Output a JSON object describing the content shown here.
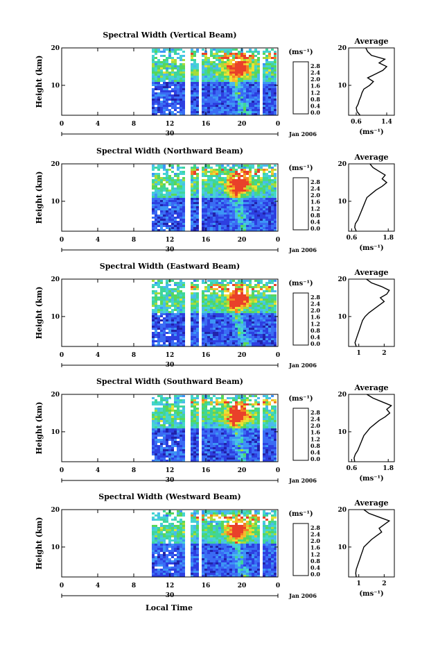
{
  "figure": {
    "bottom_label": "Local Time",
    "date_label": "Jan 2006",
    "day_label": "30",
    "colorbar_unit": "(ms⁻¹)"
  },
  "chart_data": [
    {
      "type": "heatmap",
      "title": "Spectral Width (Vertical Beam)",
      "ylabel": "Height (km)",
      "xlabel": "Local Time",
      "xlim": [
        0,
        24
      ],
      "xticks": [
        "0",
        "4",
        "8",
        "12",
        "16",
        "20",
        "0"
      ],
      "ylim": [
        2,
        20
      ],
      "yticks": [
        "10",
        "20"
      ],
      "colorbar": {
        "unit": "(ms⁻¹)",
        "ticks": [
          "2.8",
          "2.4",
          "2.0",
          "1.6",
          "1.2",
          "0.8",
          "0.4",
          "0.0"
        ]
      },
      "data_start_hour": 10,
      "gaps_hours": [
        [
          13.6,
          14.0
        ],
        [
          15.0,
          15.3
        ],
        [
          22.0,
          22.2
        ]
      ],
      "profile": {
        "title": "Average",
        "xlabel": "(ms⁻¹)",
        "xticks": [
          "0.6",
          "1.4"
        ],
        "xlim": [
          0.4,
          1.6
        ],
        "height": [
          2,
          3,
          4,
          5,
          6,
          7,
          8,
          9,
          10,
          11,
          12,
          13,
          14,
          15,
          16,
          17,
          18,
          19,
          20
        ],
        "value": [
          0.7,
          0.62,
          0.6,
          0.65,
          0.68,
          0.72,
          0.75,
          0.8,
          0.95,
          1.05,
          0.9,
          1.1,
          1.3,
          1.4,
          1.2,
          1.35,
          1.0,
          0.9,
          0.85
        ]
      }
    },
    {
      "type": "heatmap",
      "title": "Spectral Width (Northward Beam)",
      "ylabel": "Height (km)",
      "xlabel": "Local Time",
      "xlim": [
        0,
        24
      ],
      "xticks": [
        "0",
        "4",
        "8",
        "12",
        "16",
        "20",
        "0"
      ],
      "ylim": [
        2,
        20
      ],
      "yticks": [
        "10",
        "20"
      ],
      "colorbar": {
        "unit": "(ms⁻¹)",
        "ticks": [
          "2.8",
          "2.4",
          "2.0",
          "1.6",
          "1.2",
          "0.8",
          "0.4",
          "0.0"
        ]
      },
      "data_start_hour": 10,
      "gaps_hours": [
        [
          13.6,
          14.0
        ],
        [
          15.0,
          15.3
        ]
      ],
      "profile": {
        "title": "Average",
        "xlabel": "(ms⁻¹)",
        "xticks": [
          "0.6",
          "1.8"
        ],
        "xlim": [
          0.5,
          2.0
        ],
        "height": [
          2,
          3,
          4,
          5,
          6,
          7,
          8,
          9,
          10,
          11,
          12,
          13,
          14,
          15,
          16,
          17,
          18,
          19,
          20
        ],
        "value": [
          0.75,
          0.7,
          0.72,
          0.8,
          0.85,
          0.9,
          0.95,
          1.0,
          1.05,
          1.1,
          1.25,
          1.4,
          1.6,
          1.75,
          1.6,
          1.7,
          1.5,
          1.3,
          1.2
        ]
      }
    },
    {
      "type": "heatmap",
      "title": "Spectral Width (Eastward Beam)",
      "ylabel": "Height (km)",
      "xlabel": "Local Time",
      "xlim": [
        0,
        24
      ],
      "xticks": [
        "0",
        "4",
        "8",
        "12",
        "16",
        "20",
        "0"
      ],
      "ylim": [
        2,
        20
      ],
      "yticks": [
        "10",
        "20"
      ],
      "colorbar": {
        "unit": "(ms⁻¹)",
        "ticks": [
          "2.8",
          "2.4",
          "2.0",
          "1.6",
          "1.2",
          "0.8",
          "0.4",
          "0.0"
        ]
      },
      "data_start_hour": 10,
      "gaps_hours": [
        [
          13.6,
          14.0
        ],
        [
          15.0,
          15.3
        ]
      ],
      "profile": {
        "title": "Average",
        "xlabel": "",
        "xticks": [
          "1",
          "2"
        ],
        "xlim": [
          0.6,
          2.4
        ],
        "height": [
          2,
          3,
          4,
          5,
          6,
          7,
          8,
          9,
          10,
          11,
          12,
          13,
          14,
          15,
          16,
          17,
          18,
          19,
          20
        ],
        "value": [
          0.9,
          0.85,
          0.9,
          0.95,
          1.0,
          1.05,
          1.1,
          1.15,
          1.25,
          1.4,
          1.6,
          1.8,
          2.0,
          1.85,
          2.1,
          2.2,
          1.9,
          1.5,
          1.3
        ]
      }
    },
    {
      "type": "heatmap",
      "title": "Spectral Width (Southward Beam)",
      "ylabel": "Height (km)",
      "xlabel": "Local Time",
      "xlim": [
        0,
        24
      ],
      "xticks": [
        "0",
        "4",
        "8",
        "12",
        "16",
        "20",
        "0"
      ],
      "ylim": [
        2,
        20
      ],
      "yticks": [
        "10",
        "20"
      ],
      "colorbar": {
        "unit": "(ms⁻¹)",
        "ticks": [
          "2.8",
          "2.4",
          "2.0",
          "1.6",
          "1.2",
          "0.8",
          "0.4",
          "0.0"
        ]
      },
      "data_start_hour": 10,
      "gaps_hours": [
        [
          13.6,
          14.0
        ],
        [
          15.0,
          15.3
        ],
        [
          22.0,
          22.2
        ]
      ],
      "profile": {
        "title": "Average",
        "xlabel": "(ms⁻¹)",
        "xticks": [
          "0.6",
          "1.8"
        ],
        "xlim": [
          0.5,
          2.0
        ],
        "height": [
          2,
          3,
          4,
          5,
          6,
          7,
          8,
          9,
          10,
          11,
          12,
          13,
          14,
          15,
          16,
          17,
          18,
          19,
          20
        ],
        "value": [
          0.7,
          0.68,
          0.72,
          0.8,
          0.85,
          0.9,
          0.95,
          1.0,
          1.1,
          1.2,
          1.35,
          1.5,
          1.7,
          1.85,
          1.75,
          1.9,
          1.6,
          1.3,
          1.1
        ]
      }
    },
    {
      "type": "heatmap",
      "title": "Spectral Width (Westward Beam)",
      "ylabel": "Height (km)",
      "xlabel": "Local Time",
      "xlim": [
        0,
        24
      ],
      "xticks": [
        "0",
        "4",
        "8",
        "12",
        "16",
        "20",
        "0"
      ],
      "ylim": [
        2,
        20
      ],
      "yticks": [
        "10",
        "20"
      ],
      "colorbar": {
        "unit": "(ms⁻¹)",
        "ticks": [
          "2.8",
          "2.4",
          "2.0",
          "1.6",
          "1.2",
          "0.8",
          "0.4",
          "0.0"
        ]
      },
      "data_start_hour": 10,
      "gaps_hours": [
        [
          13.6,
          14.0
        ],
        [
          15.0,
          15.3
        ],
        [
          22.0,
          22.2
        ]
      ],
      "profile": {
        "title": "Average",
        "xlabel": "(ms⁻¹)",
        "xticks": [
          "1",
          "2"
        ],
        "xlim": [
          0.6,
          2.4
        ],
        "height": [
          2,
          3,
          4,
          5,
          6,
          7,
          8,
          9,
          10,
          11,
          12,
          13,
          14,
          15,
          16,
          17,
          18,
          19,
          20
        ],
        "value": [
          0.9,
          0.88,
          0.9,
          0.95,
          1.0,
          1.05,
          1.1,
          1.15,
          1.2,
          1.35,
          1.5,
          1.7,
          1.9,
          1.8,
          2.0,
          2.2,
          1.8,
          1.4,
          1.2
        ]
      }
    }
  ]
}
